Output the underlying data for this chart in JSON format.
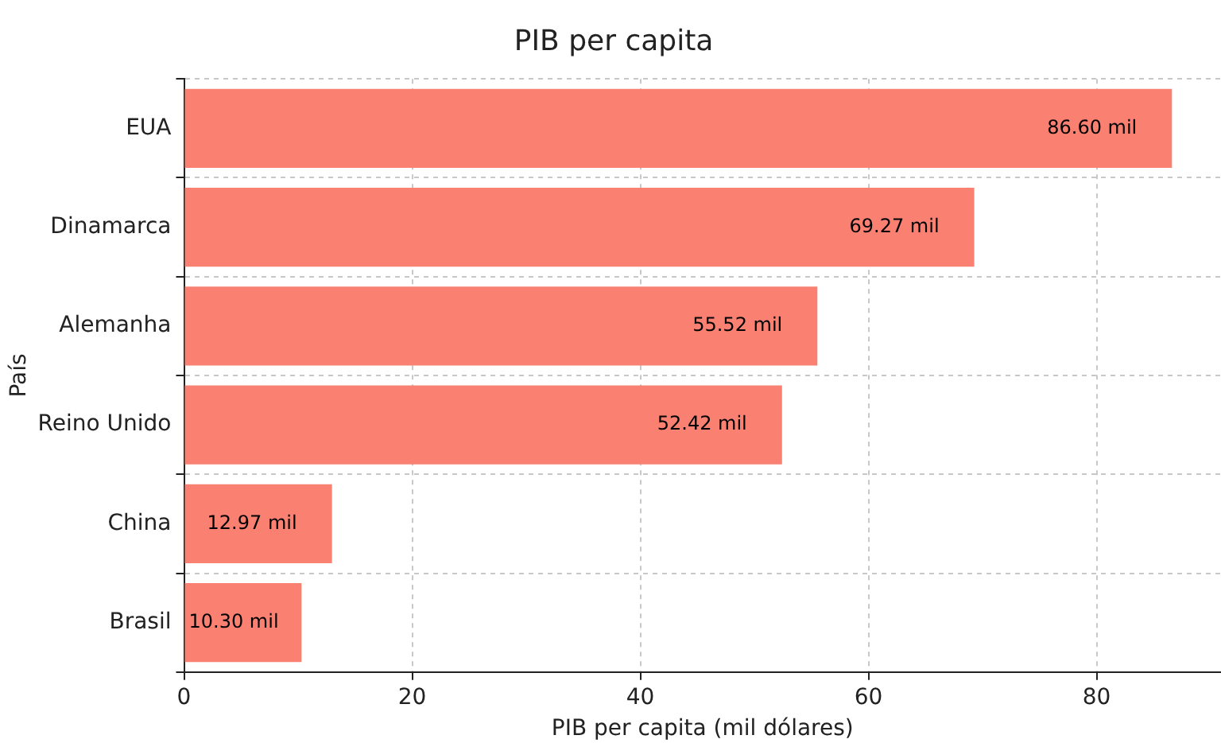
{
  "chart_data": {
    "type": "bar",
    "orientation": "horizontal",
    "title": "PIB per capita",
    "xlabel": "PIB per capita (mil dólares)",
    "ylabel": "País",
    "categories": [
      "EUA",
      "Dinamarca",
      "Alemanha",
      "Reino Unido",
      "China",
      "Brasil"
    ],
    "values": [
      86.6,
      69.27,
      55.52,
      52.42,
      12.97,
      10.3
    ],
    "value_labels": [
      "86.60 mil",
      "69.27 mil",
      "55.52 mil",
      "52.42 mil",
      "12.97 mil",
      "10.30 mil"
    ],
    "color": "#fa8072",
    "xlim": [
      0,
      90.9
    ],
    "xticks": [
      0,
      20,
      40,
      60,
      80
    ],
    "grid": true,
    "legend": false
  }
}
